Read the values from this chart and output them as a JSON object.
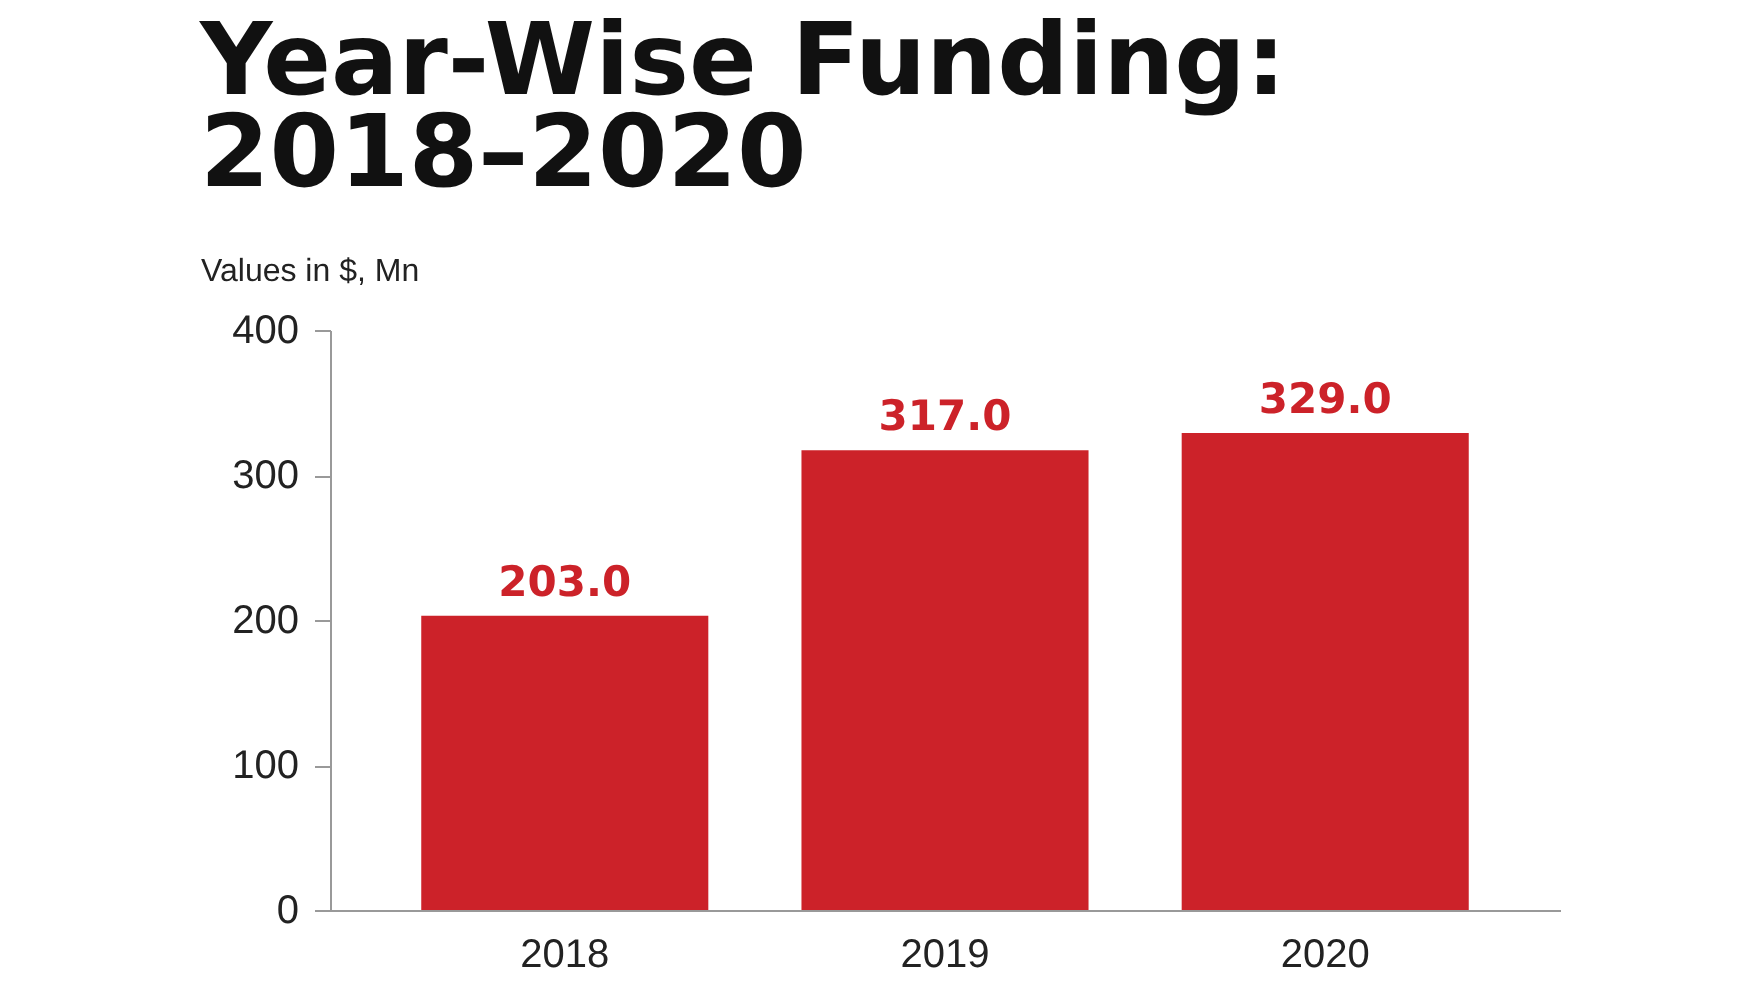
{
  "chart_data": {
    "type": "bar",
    "title": "Year-Wise Funding: 2018–2020",
    "ylabel": "Values in $, Mn",
    "categories": [
      "2018",
      "2019",
      "2020"
    ],
    "values": [
      203.0,
      317.0,
      329.0
    ],
    "value_labels": [
      "203.0",
      "317.0",
      "329.0"
    ],
    "color": "#cc2229",
    "ylim": [
      0,
      400
    ],
    "yticks": [
      0,
      100,
      200,
      300,
      400
    ],
    "grid": false
  }
}
